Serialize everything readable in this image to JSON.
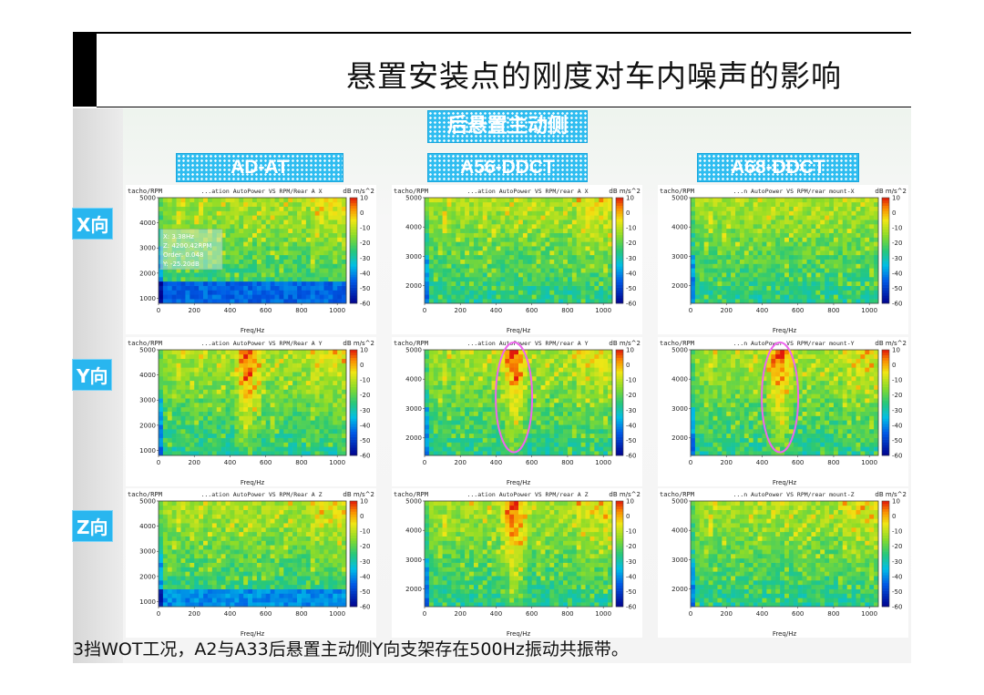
{
  "slide": {
    "title": "悬置安装点的刚度对车内噪声的影响",
    "banner": "后悬置主动侧",
    "column_headers": [
      "AD-AT",
      "A56-DDCT",
      "A68-DDCT"
    ],
    "row_labels": [
      "X向",
      "Y向",
      "Z向"
    ],
    "footer": "3挡WOT工况，A2与A33后悬置主动侧Y向支架存在500Hz振动共振带。"
  },
  "colors": {
    "banner_bg": "#2fbdf0",
    "highlight_circle": "#ee66ee",
    "title_line": "#000000"
  },
  "chart_data": [
    {
      "type": "heatmap",
      "id": "AD-AT_X",
      "title": "...ation AutoPower VS RPM/Rear A X",
      "xlabel": "Freq/Hz",
      "ylabel": "tacho/RPM",
      "colorbar_unit": "dB m/s^2",
      "xlim": [
        0,
        1050
      ],
      "ylim": [
        800,
        5000
      ],
      "x_ticks": [
        0,
        200,
        400,
        600,
        800,
        1000
      ],
      "y_ticks": [
        1000,
        2000,
        3000,
        4000,
        5000
      ],
      "colorbar_ticks": [
        10,
        0,
        -10,
        -20,
        -30,
        -40,
        -50,
        -60
      ],
      "cursor_readout": [
        "X: 3.38Hz",
        "Z: 4200.42RPM",
        "Order: 0.048",
        "Y: -25.20dB"
      ],
      "resonance_band": null
    },
    {
      "type": "heatmap",
      "id": "A56-DDCT_X",
      "title": "...ation AutoPower VS RPM/rear A X",
      "xlabel": "Freq/Hz",
      "ylabel": "tacho/RPM",
      "colorbar_unit": "dB m/s^2",
      "xlim": [
        0,
        1050
      ],
      "ylim": [
        1400,
        5000
      ],
      "x_ticks": [
        0,
        200,
        400,
        600,
        800,
        1000
      ],
      "y_ticks": [
        2000,
        3000,
        4000,
        5000
      ],
      "colorbar_ticks": [
        10,
        0,
        -10,
        -20,
        -30,
        -40,
        -50,
        -60
      ],
      "resonance_band": null
    },
    {
      "type": "heatmap",
      "id": "A68-DDCT_X",
      "title": "...n AutoPower VS RPM/rear mount-X",
      "xlabel": "Freq/Hz",
      "ylabel": "tacho/RPM",
      "colorbar_unit": "dB m/s^2",
      "xlim": [
        0,
        1050
      ],
      "ylim": [
        1400,
        5000
      ],
      "x_ticks": [
        0,
        200,
        400,
        600,
        800,
        1000
      ],
      "y_ticks": [
        2000,
        3000,
        4000,
        5000
      ],
      "colorbar_ticks": [
        10,
        0,
        -10,
        -20,
        -30,
        -40,
        -50,
        -60
      ],
      "resonance_band": null
    },
    {
      "type": "heatmap",
      "id": "AD-AT_Y",
      "title": "...ation AutoPower VS RPM/Rear A Y",
      "xlabel": "Freq/Hz",
      "ylabel": "tacho/RPM",
      "colorbar_unit": "dB m/s^2",
      "xlim": [
        0,
        1050
      ],
      "ylim": [
        800,
        5000
      ],
      "x_ticks": [
        0,
        200,
        400,
        600,
        800,
        1000
      ],
      "y_ticks": [
        1000,
        2000,
        3000,
        4000,
        5000
      ],
      "colorbar_ticks": [
        10,
        0,
        -10,
        -20,
        -30,
        -40,
        -50,
        -60
      ],
      "resonance_band": 500
    },
    {
      "type": "heatmap",
      "id": "A56-DDCT_Y",
      "title": "...ation AutoPower VS RPM/rear A Y",
      "xlabel": "Freq/Hz",
      "ylabel": "tacho/RPM",
      "colorbar_unit": "dB m/s^2",
      "xlim": [
        0,
        1050
      ],
      "ylim": [
        1400,
        5000
      ],
      "x_ticks": [
        0,
        200,
        400,
        600,
        800,
        1000
      ],
      "y_ticks": [
        2000,
        3000,
        4000,
        5000
      ],
      "colorbar_ticks": [
        10,
        0,
        -10,
        -20,
        -30,
        -40,
        -50,
        -60
      ],
      "resonance_band": 500,
      "highlight": true
    },
    {
      "type": "heatmap",
      "id": "A68-DDCT_Y",
      "title": "...n AutoPower VS RPM/rear mount-Y",
      "xlabel": "Freq/Hz",
      "ylabel": "tacho/RPM",
      "colorbar_unit": "dB m/s^2",
      "xlim": [
        0,
        1050
      ],
      "ylim": [
        1400,
        5000
      ],
      "x_ticks": [
        0,
        200,
        400,
        600,
        800,
        1000
      ],
      "y_ticks": [
        2000,
        3000,
        4000,
        5000
      ],
      "colorbar_ticks": [
        10,
        0,
        -10,
        -20,
        -30,
        -40,
        -50,
        -60
      ],
      "resonance_band": 500,
      "highlight": true
    },
    {
      "type": "heatmap",
      "id": "AD-AT_Z",
      "title": "...ation AutoPower VS RPM/Rear A Z",
      "xlabel": "Freq/Hz",
      "ylabel": "tacho/RPM",
      "colorbar_unit": "dB m/s^2",
      "xlim": [
        0,
        1050
      ],
      "ylim": [
        800,
        5000
      ],
      "x_ticks": [
        0,
        200,
        400,
        600,
        800,
        1000
      ],
      "y_ticks": [
        1000,
        2000,
        3000,
        4000,
        5000
      ],
      "colorbar_ticks": [
        10,
        0,
        -10,
        -20,
        -30,
        -40,
        -50,
        -60
      ],
      "resonance_band": null
    },
    {
      "type": "heatmap",
      "id": "A56-DDCT_Z",
      "title": "...ation AutoPower VS RPM/rear A Z",
      "xlabel": "Freq/Hz",
      "ylabel": "tacho/RPM",
      "colorbar_unit": "dB m/s^2",
      "xlim": [
        0,
        1050
      ],
      "ylim": [
        1400,
        5000
      ],
      "x_ticks": [
        0,
        200,
        400,
        600,
        800,
        1000
      ],
      "y_ticks": [
        2000,
        3000,
        4000,
        5000
      ],
      "colorbar_ticks": [
        10,
        0,
        -10,
        -20,
        -30,
        -40,
        -50,
        -60
      ],
      "resonance_band": 500
    },
    {
      "type": "heatmap",
      "id": "A68-DDCT_Z",
      "title": "...n AutoPower VS RPM/rear mount-Z",
      "xlabel": "Freq/Hz",
      "ylabel": "tacho/RPM",
      "colorbar_unit": "dB m/s^2",
      "xlim": [
        0,
        1050
      ],
      "ylim": [
        1400,
        5000
      ],
      "x_ticks": [
        0,
        200,
        400,
        600,
        800,
        1000
      ],
      "y_ticks": [
        2000,
        3000,
        4000,
        5000
      ],
      "colorbar_ticks": [
        10,
        0,
        -10,
        -20,
        -30,
        -40,
        -50,
        -60
      ],
      "resonance_band": null
    }
  ]
}
